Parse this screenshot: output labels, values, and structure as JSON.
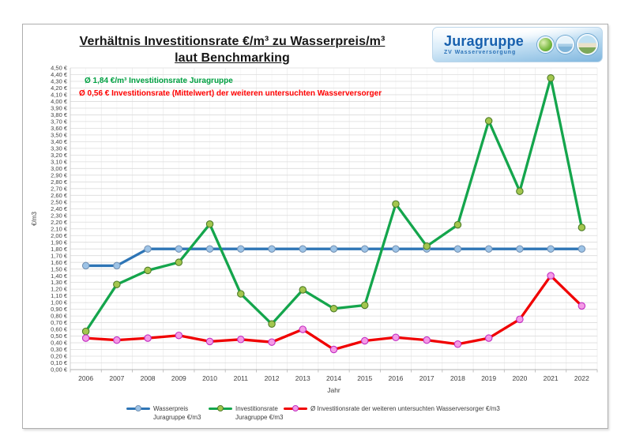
{
  "header": {
    "title_line1": "Verhältnis Investitionsrate €/m³ zu Wasserpreis/m³",
    "title_line2": "laut Benchmarking"
  },
  "logo": {
    "name": "Juragruppe",
    "subtitle": "ZV Wasserversorgung",
    "icons": [
      "landscape-photo",
      "water-photo",
      "buildings-photo"
    ],
    "brand_color": "#1760ae"
  },
  "annotations": {
    "green": "Ø 1,84 €/m³ Investitionsrate Juragruppe",
    "green_color": "#00a142",
    "red": "Ø 0,56 € Investitionsrate (Mittelwert) der weiteren untersuchten Wasserversorger",
    "red_color": "#ff0000"
  },
  "chart_data": {
    "type": "line",
    "title": "Verhältnis Investitionsrate €/m³ zu Wasserpreis/m³ laut Benchmarking",
    "xlabel": "Jahr",
    "ylabel": "€/m3",
    "ylim": [
      0,
      4.5
    ],
    "ytick_step": 0.1,
    "ytick_format": {
      "decimals": 2,
      "decimal_separator": ",",
      "suffix": " €"
    },
    "grid": true,
    "legend_position": "bottom",
    "categories": [
      2006,
      2007,
      2008,
      2009,
      2010,
      2011,
      2012,
      2013,
      2014,
      2015,
      2016,
      2017,
      2018,
      2019,
      2020,
      2021,
      2022
    ],
    "series": [
      {
        "id": "wasserpreis-juragruppe",
        "name": "Wasserpreis Juragruppe €/m3",
        "legend_lines": [
          "Wasserpreis",
          "Juragruppe €/m3"
        ],
        "color": "#2e75b6",
        "marker_fill": "#9dc3e6",
        "marker_stroke": "#7593b5",
        "values": [
          1.55,
          1.55,
          1.8,
          1.8,
          1.8,
          1.8,
          1.8,
          1.8,
          1.8,
          1.8,
          1.8,
          1.8,
          1.8,
          1.8,
          1.8,
          1.8,
          1.8
        ]
      },
      {
        "id": "investitionsrate-juragruppe",
        "name": "Investitionsrate Juragruppe €/m3",
        "legend_lines": [
          "Investitionsrate",
          "Juragruppe €/m3"
        ],
        "color": "#14a54c",
        "marker_fill": "#a3c64e",
        "marker_stroke": "#4e7d28",
        "values": [
          0.57,
          1.27,
          1.48,
          1.6,
          2.17,
          1.13,
          0.68,
          1.19,
          0.91,
          0.96,
          2.47,
          1.84,
          2.16,
          3.71,
          2.66,
          4.35,
          2.12
        ]
      },
      {
        "id": "investitionsrate-weitere-wasserversorger",
        "name": "Ø Investitionsrate der weiteren untersuchten Wasserversorger €/m3",
        "legend_lines": [
          "Ø Investitionsrate der weiteren untersuchten Wasserversorger €/m3"
        ],
        "color": "#f00000",
        "marker_fill": "#f49ae6",
        "marker_stroke": "#c22fc2",
        "values": [
          0.47,
          0.44,
          0.47,
          0.51,
          0.42,
          0.45,
          0.41,
          0.6,
          0.3,
          0.43,
          0.48,
          0.44,
          0.38,
          0.47,
          0.75,
          1.4,
          0.95
        ]
      }
    ]
  }
}
